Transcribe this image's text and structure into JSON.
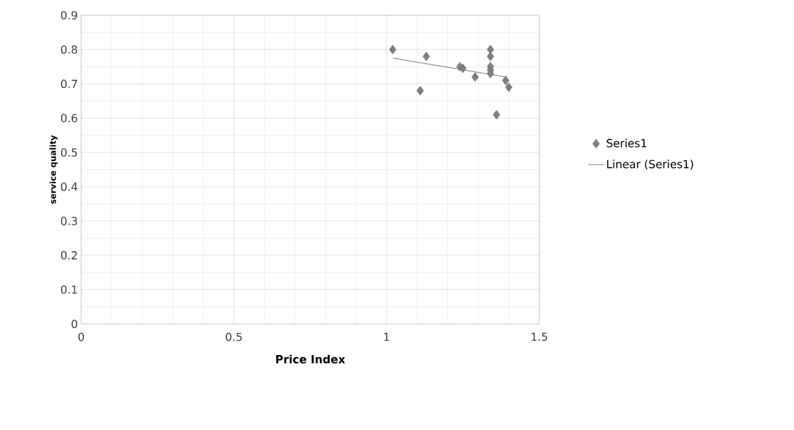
{
  "chart_data": {
    "type": "scatter",
    "xlabel": "Price Index",
    "ylabel": "service quality",
    "xlim": [
      0,
      1.5
    ],
    "ylim": [
      0,
      0.9
    ],
    "xticks": [
      0,
      0.5,
      1,
      1.5
    ],
    "yticks": [
      0,
      0.1,
      0.2,
      0.3,
      0.4,
      0.5,
      0.6,
      0.7,
      0.8,
      0.9
    ],
    "grid": true,
    "legend": "right",
    "series": [
      {
        "name": "Series1",
        "marker": "diamond",
        "color": "#7f7f7f",
        "x": [
          1.02,
          1.13,
          1.11,
          1.24,
          1.25,
          1.29,
          1.34,
          1.34,
          1.34,
          1.34,
          1.34,
          1.36,
          1.39,
          1.4
        ],
        "values": [
          0.8,
          0.78,
          0.68,
          0.75,
          0.745,
          0.72,
          0.8,
          0.78,
          0.75,
          0.74,
          0.73,
          0.61,
          0.71,
          0.69
        ]
      },
      {
        "name": "Linear (Series1)",
        "type": "line",
        "marker": "none",
        "line_style": "solid",
        "color": "#000000",
        "x": [
          1.02,
          1.39
        ],
        "values": [
          0.775,
          0.72
        ]
      }
    ]
  }
}
